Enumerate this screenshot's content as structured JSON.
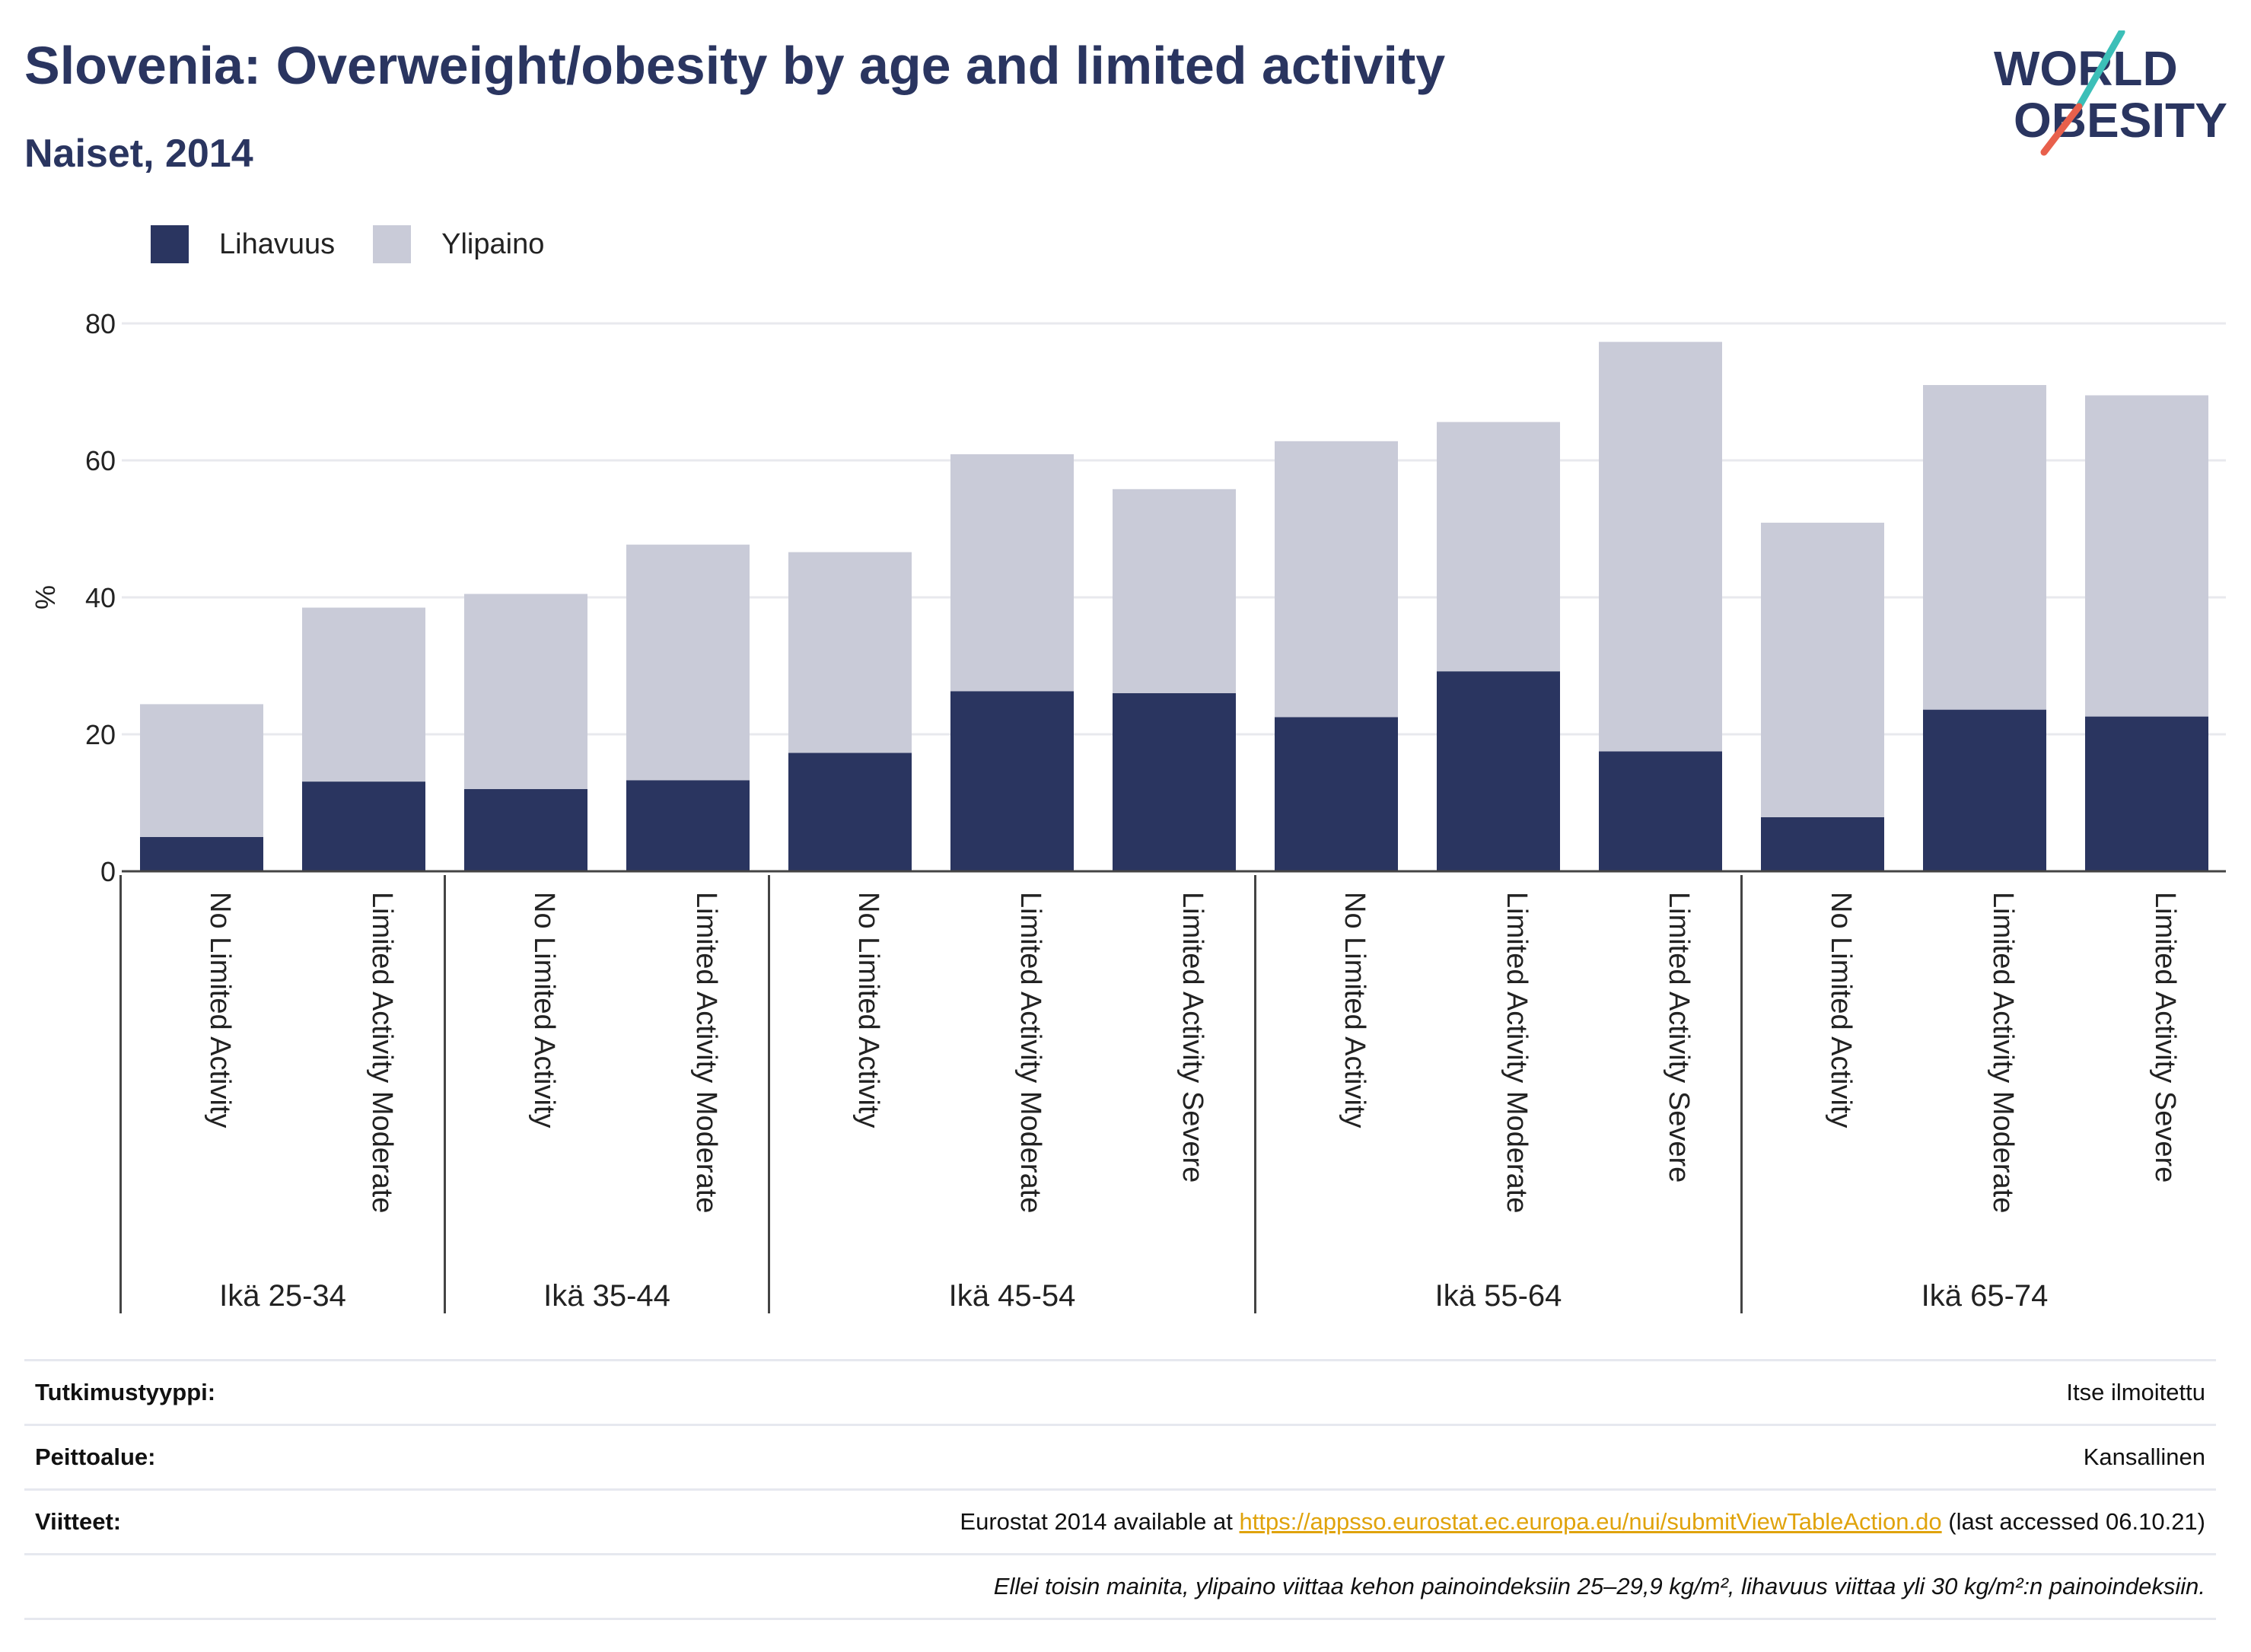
{
  "header": {
    "title": "Slovenia: Overweight/obesity by age and limited activity",
    "subtitle": "Naiset, 2014"
  },
  "logo": {
    "line1": "WORLD",
    "line2": "OBESITY",
    "accent_colors": [
      "#3cbfb8",
      "#e8604c"
    ]
  },
  "colors": {
    "obesity": "#2a3560",
    "overweight": "#c9cbd8"
  },
  "chart_data": {
    "type": "bar",
    "stacked": true,
    "ylabel": "%",
    "ylim": [
      0,
      80
    ],
    "yticks": [
      0,
      20,
      40,
      60,
      80
    ],
    "grid": true,
    "legend_position": "top-left",
    "groups": [
      {
        "label": "Ikä 25-34",
        "categories": [
          "No Limited Activity",
          "Limited Activity Moderate"
        ]
      },
      {
        "label": "Ikä 35-44",
        "categories": [
          "No Limited Activity",
          "Limited Activity Moderate"
        ]
      },
      {
        "label": "Ikä 45-54",
        "categories": [
          "No Limited Activity",
          "Limited Activity Moderate",
          "Limited Activity Severe"
        ]
      },
      {
        "label": "Ikä 55-64",
        "categories": [
          "No Limited Activity",
          "Limited Activity Moderate",
          "Limited Activity Severe"
        ]
      },
      {
        "label": "Ikä 65-74",
        "categories": [
          "No Limited Activity",
          "Limited Activity Moderate",
          "Limited Activity Severe"
        ]
      }
    ],
    "series": [
      {
        "name": "Lihavuus",
        "color": "#2a3560",
        "values": [
          5.0,
          13.1,
          12.0,
          13.3,
          17.3,
          26.3,
          26.0,
          22.5,
          29.2,
          17.5,
          7.9,
          23.6,
          22.6
        ]
      },
      {
        "name": "Ylipaino",
        "color": "#c9cbd8",
        "values": [
          19.4,
          25.4,
          28.5,
          34.4,
          29.3,
          34.6,
          29.8,
          40.3,
          36.4,
          59.8,
          43.0,
          47.4,
          46.9
        ]
      }
    ]
  },
  "info": {
    "rows": [
      {
        "label": "Tutkimustyyppi:",
        "value": "Itse ilmoitettu"
      },
      {
        "label": "Peittoalue:",
        "value": "Kansallinen"
      },
      {
        "label": "Viitteet:",
        "value_prefix": "Eurostat 2014 available at ",
        "link": "https://appsso.eurostat.ec.europa.eu/nui/submitViewTableAction.do",
        "value_suffix": " (last accessed 06.10.21)"
      }
    ],
    "note": "Ellei toisin mainita, ylipaino viittaa kehon painoindeksiin 25–29,9 kg/m², lihavuus viittaa yli 30 kg/m²:n painoindeksiin."
  }
}
